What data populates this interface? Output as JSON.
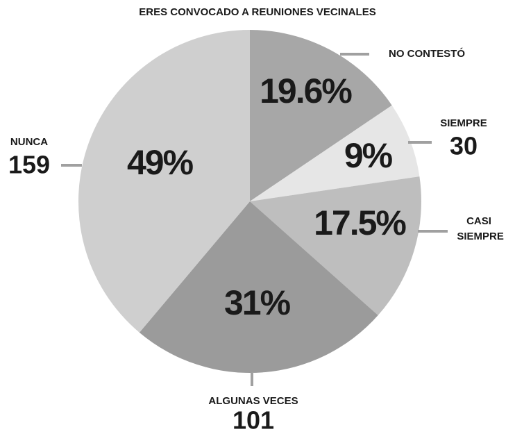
{
  "chart_data": {
    "type": "pie",
    "title": "ERES CONVOCADO A REUNIONES VECINALES",
    "categories": [
      "NO CONTESTÓ",
      "SIEMPRE",
      "CASI SIEMPRE",
      "ALGUNAS VECES",
      "NUNCA"
    ],
    "values": [
      19.6,
      9,
      17.5,
      31,
      49
    ],
    "value_labels": [
      "19.6%",
      "9%",
      "17.5%",
      "31%",
      "49%"
    ],
    "counts": [
      null,
      30,
      null,
      101,
      159
    ],
    "colors": [
      "#a7a7a7",
      "#e6e6e6",
      "#bebebe",
      "#9b9b9b",
      "#cfcfcf"
    ]
  }
}
